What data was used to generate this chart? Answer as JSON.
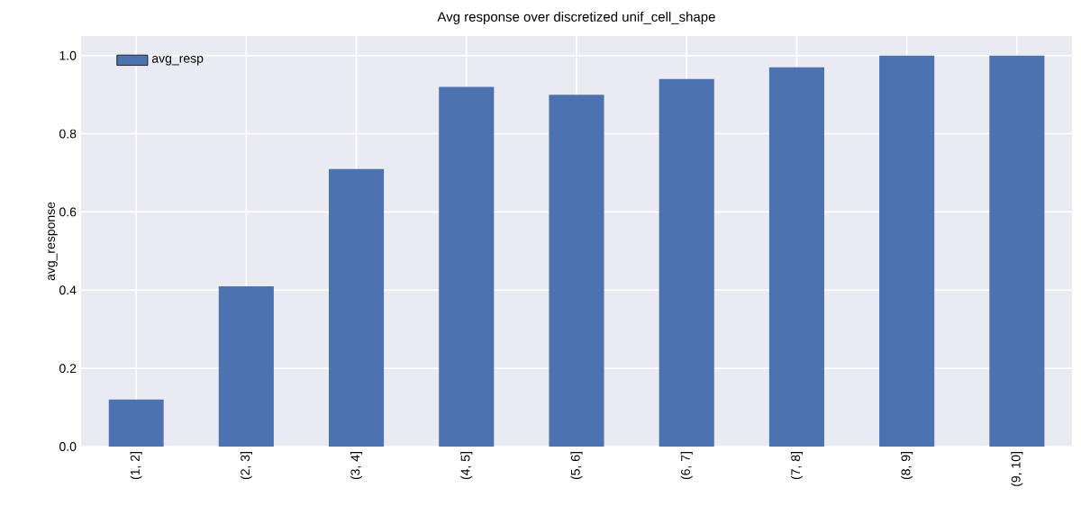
{
  "chart_data": {
    "type": "bar",
    "title": "Avg response over discretized unif_cell_shape",
    "ylabel": "avg_response",
    "categories": [
      "(1, 2]",
      "(2, 3]",
      "(3, 4]",
      "(4, 5]",
      "(5, 6]",
      "(6, 7]",
      "(7, 8]",
      "(8, 9]",
      "(9, 10]"
    ],
    "series": [
      {
        "name": "avg_resp",
        "color": "#4c72b0",
        "values": [
          0.12,
          0.41,
          0.71,
          0.92,
          0.9,
          0.94,
          0.97,
          1.0,
          1.0
        ]
      }
    ],
    "ylim": [
      0,
      1.05
    ],
    "yticks": [
      {
        "value": 0,
        "label": "0.0"
      },
      {
        "value": 0.2,
        "label": "0.2"
      },
      {
        "value": 0.4,
        "label": "0.4"
      },
      {
        "value": 0.6,
        "label": "0.6"
      },
      {
        "value": 0.8,
        "label": "0.8"
      },
      {
        "value": 1.0,
        "label": "1.0"
      }
    ],
    "grid": true,
    "legend": "top left"
  }
}
